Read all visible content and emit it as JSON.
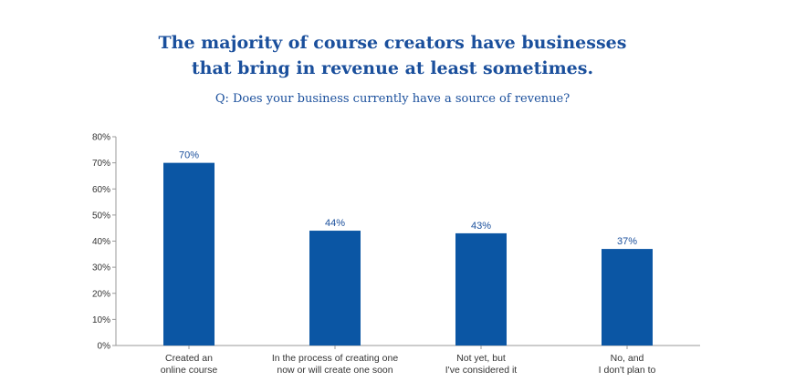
{
  "chart_data": {
    "type": "bar",
    "title": [
      "The majority of course creators have businesses",
      "that bring in revenue at least sometimes."
    ],
    "subtitle": "Q: Does your business currently have a source of revenue?",
    "categories": [
      [
        "Created an",
        "online course"
      ],
      [
        "In the process of creating one",
        "now or will create one soon"
      ],
      [
        "Not yet, but",
        "I've considered it"
      ],
      [
        "No, and",
        "I don't plan to"
      ]
    ],
    "values": [
      70,
      44,
      43,
      37
    ],
    "data_labels": [
      "70%",
      "44%",
      "43%",
      "37%"
    ],
    "ylim": [
      0,
      80
    ],
    "yticks": [
      "0%",
      "10%",
      "20%",
      "30%",
      "40%",
      "50%",
      "60%",
      "70%",
      "80%"
    ],
    "bar_color": "#0b56a4",
    "grid": false,
    "legend": "none"
  }
}
